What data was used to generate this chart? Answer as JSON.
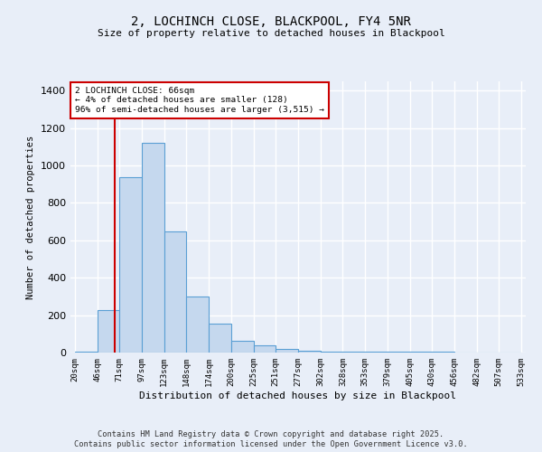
{
  "title1": "2, LOCHINCH CLOSE, BLACKPOOL, FY4 5NR",
  "title2": "Size of property relative to detached houses in Blackpool",
  "xlabel": "Distribution of detached houses by size in Blackpool",
  "ylabel": "Number of detached properties",
  "bar_labels": [
    "20sqm",
    "46sqm",
    "71sqm",
    "97sqm",
    "123sqm",
    "148sqm",
    "174sqm",
    "200sqm",
    "225sqm",
    "251sqm",
    "277sqm",
    "302sqm",
    "328sqm",
    "353sqm",
    "379sqm",
    "405sqm",
    "430sqm",
    "456sqm",
    "482sqm",
    "507sqm",
    "533sqm"
  ],
  "bar_values": [
    5,
    225,
    940,
    1120,
    650,
    300,
    155,
    65,
    40,
    20,
    10,
    5,
    5,
    5,
    5,
    5,
    5,
    2,
    2,
    2,
    2
  ],
  "bar_color": "#c5d8ee",
  "bar_edge_color": "#5a9fd4",
  "red_line_x": 1.8,
  "annotation_text": "2 LOCHINCH CLOSE: 66sqm\n← 4% of detached houses are smaller (128)\n96% of semi-detached houses are larger (3,515) →",
  "annotation_box_color": "#ffffff",
  "annotation_box_edge": "#cc0000",
  "annotation_text_color": "#000000",
  "red_line_color": "#cc0000",
  "ylim": [
    0,
    1450
  ],
  "yticks": [
    0,
    200,
    400,
    600,
    800,
    1000,
    1200,
    1400
  ],
  "footer1": "Contains HM Land Registry data © Crown copyright and database right 2025.",
  "footer2": "Contains public sector information licensed under the Open Government Licence v3.0.",
  "bg_color": "#e8eef8",
  "grid_color": "#ffffff"
}
